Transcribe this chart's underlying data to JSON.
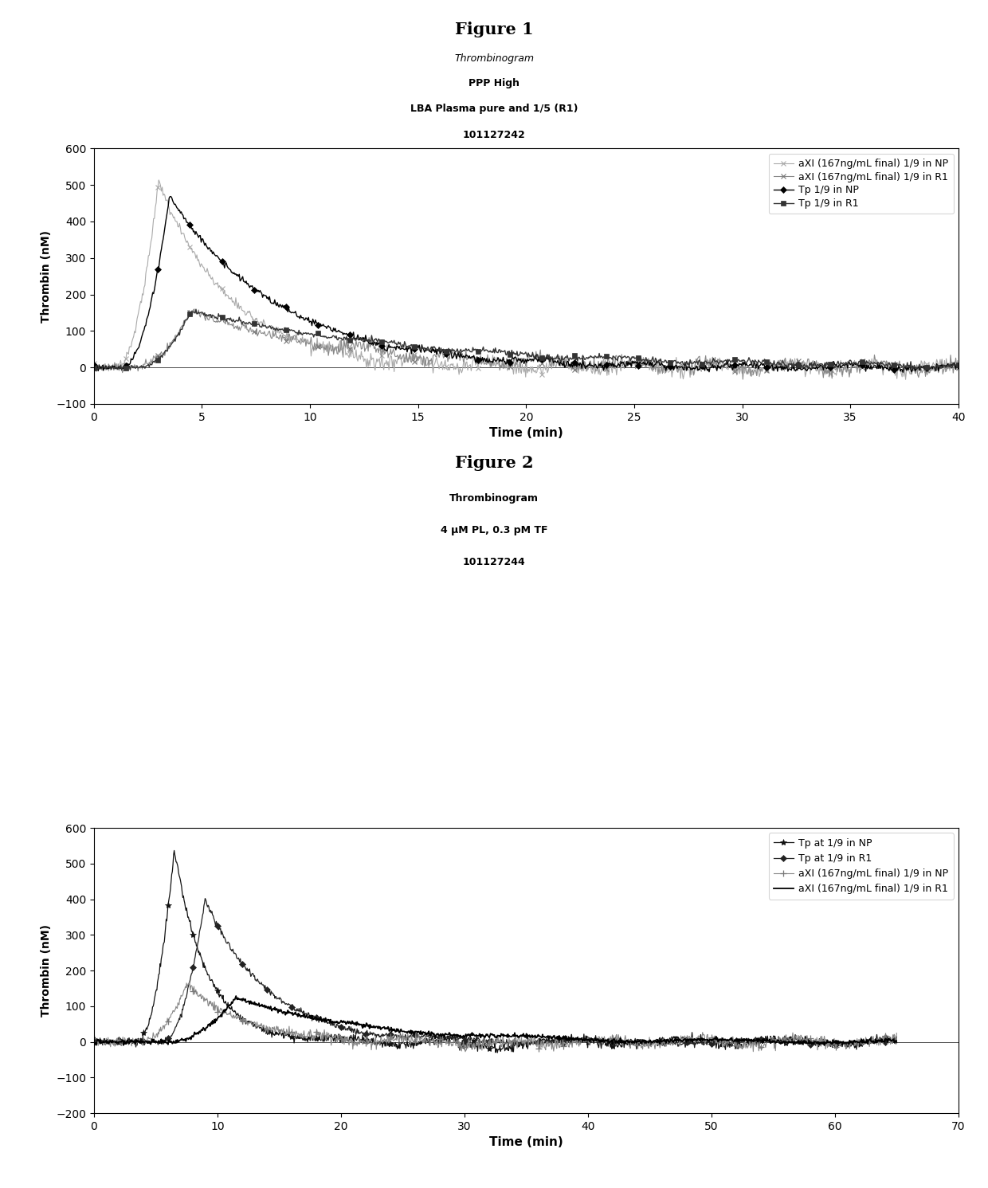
{
  "fig1_title": "Figure 1",
  "fig2_title": "Figure 2",
  "fig1_subtitle_line1": "Thrombinogram",
  "fig1_subtitle_line2": "PPP High",
  "fig1_subtitle_line3": "LBA Plasma pure and 1/5 (R1)",
  "fig1_subtitle_line4": "101127242",
  "fig2_subtitle_line1": "Thrombinogram",
  "fig2_subtitle_line2": "4 μM PL, 0.3 pM TF",
  "fig2_subtitle_line3": "101127244",
  "xlabel": "Time (min)",
  "ylabel": "Thrombin (nM)",
  "fig1_xlim": [
    0,
    40
  ],
  "fig1_ylim": [
    -100,
    600
  ],
  "fig1_xticks": [
    0,
    5,
    10,
    15,
    20,
    25,
    30,
    35,
    40
  ],
  "fig1_yticks": [
    -100,
    0,
    100,
    200,
    300,
    400,
    500,
    600
  ],
  "fig2_xlim": [
    0,
    70
  ],
  "fig2_ylim": [
    -200,
    600
  ],
  "fig2_xticks": [
    0,
    10,
    20,
    30,
    40,
    50,
    60,
    70
  ],
  "fig2_yticks": [
    -200,
    -100,
    0,
    100,
    200,
    300,
    400,
    500,
    600
  ],
  "fig1_legend": [
    "Tp 1/9 in NP",
    "Tp 1/9 in R1",
    "aXI (167ng/mL final) 1/9 in NP",
    "aXI (167ng/mL final) 1/9 in R1"
  ],
  "fig2_legend": [
    "Tp at 1/9 in NP",
    "Tp at 1/9 in R1",
    "aXI (167ng/mL final) 1/9 in NP",
    "aXI (167ng/mL final) 1/9 in R1"
  ],
  "background_color": "#ffffff"
}
